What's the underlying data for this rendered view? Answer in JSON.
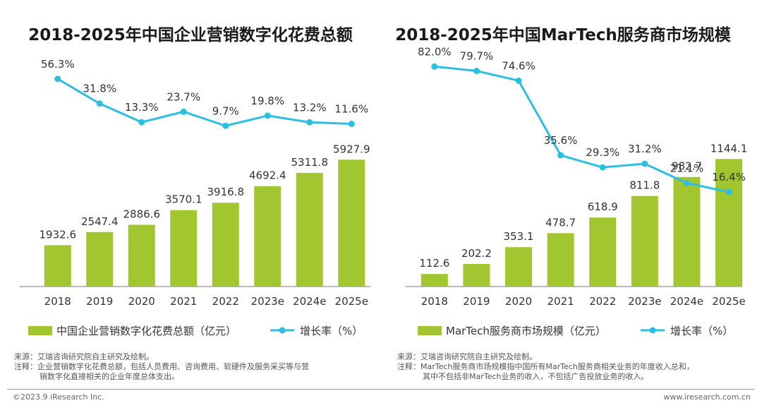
{
  "colors": {
    "bar": "#a2c62f",
    "line": "#2bbfe3",
    "axis": "#777777"
  },
  "chart_data": [
    {
      "type": "bar",
      "title": "2018-2025年中国企业营销数字化花费总额",
      "categories": [
        "2018",
        "2019",
        "2020",
        "2021",
        "2022",
        "2023e",
        "2024e",
        "2025e"
      ],
      "series": [
        {
          "name": "中国企业营销数字化花费总额（亿元）",
          "type": "bar",
          "values": [
            1932.6,
            2547.4,
            2886.6,
            3570.1,
            3916.8,
            4692.4,
            5311.8,
            5927.9
          ]
        },
        {
          "name": "增长率（%）",
          "type": "line",
          "values": [
            56.3,
            31.8,
            13.3,
            23.7,
            9.7,
            19.8,
            13.2,
            11.6
          ]
        }
      ],
      "bar_ylim": [
        0,
        6200
      ],
      "line_ylim": [
        -150,
        80
      ],
      "legend": [
        "中国企业营销数字化花费总额（亿元）",
        "增长率（%）"
      ],
      "legend_position": "bottom"
    },
    {
      "type": "bar",
      "title": "2018-2025年中国MarTech服务商市场规模",
      "categories": [
        "2018",
        "2019",
        "2020",
        "2021",
        "2022",
        "2023e",
        "2024e",
        "2025e"
      ],
      "series": [
        {
          "name": "MarTech服务商市场规模（亿元）",
          "type": "bar",
          "values": [
            112.6,
            202.2,
            353.1,
            478.7,
            618.9,
            811.8,
            982.7,
            1144.1
          ]
        },
        {
          "name": "增长率（%）",
          "type": "line",
          "values": [
            82.0,
            79.7,
            74.6,
            35.6,
            29.3,
            31.2,
            21.1,
            16.4
          ]
        }
      ],
      "bar_ylim": [
        0,
        1190
      ],
      "line_ylim": [
        -33,
        88
      ],
      "legend": [
        "MarTech服务商市场规模（亿元）",
        "增长率（%）"
      ],
      "legend_position": "bottom"
    }
  ],
  "notes_left": {
    "source": "来源：艾瑞咨询研究院自主研究及绘制。",
    "note_line1": "注释：企业营销数字化花费总额，包括人员费用、咨询费用、软硬件及服务采买等与营",
    "note_line2": "销数字化直接相关的企业年度总体支出。"
  },
  "notes_right": {
    "source": "来源：艾瑞咨询研究院自主研究及绘制。",
    "note_line1": "注释：MarTech服务商市场规模指中国所有MarTech服务商相关业务的年度收入总和，",
    "note_line2": "其中不包括非MarTech业务的收入，不包括广告投放业务的收入。"
  },
  "footer": {
    "copyright": "©2023.9 iResearch Inc.",
    "website": "www.iresearch.com.cn"
  }
}
